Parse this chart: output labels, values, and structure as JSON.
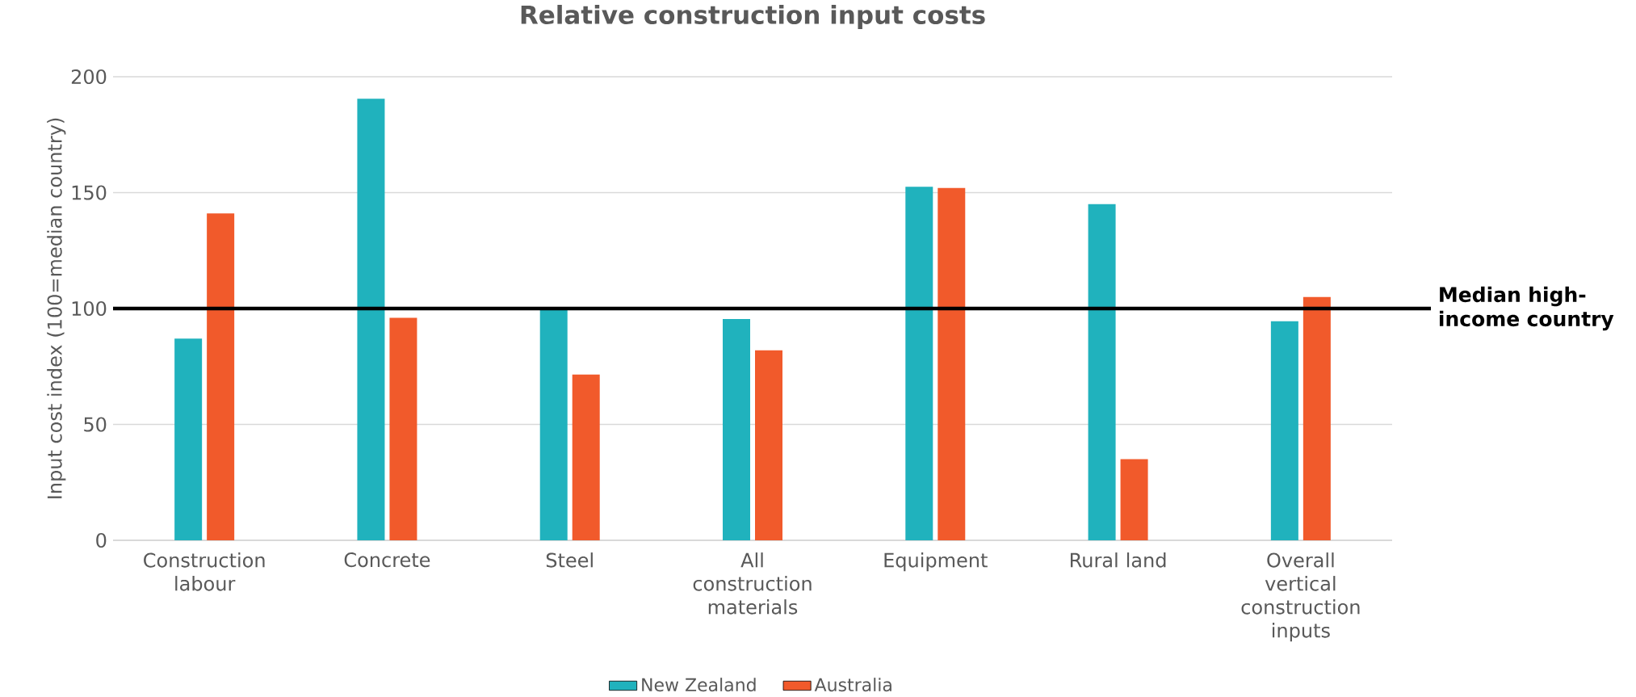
{
  "chart_data": {
    "type": "bar",
    "title": "Relative construction input costs",
    "ylabel": "Input cost index (100=median country)",
    "categories": [
      "Construction labour",
      "Concrete",
      "Steel",
      "All construction materials",
      "Equipment",
      "Rural land",
      "Overall vertical construction inputs"
    ],
    "series": [
      {
        "name": "New Zealand",
        "color": "#20b2bd",
        "values": [
          87,
          190.5,
          100,
          95.5,
          152.5,
          145,
          94.5
        ]
      },
      {
        "name": "Australia",
        "color": "#f15a2b",
        "values": [
          141,
          96,
          71.5,
          82,
          152,
          35,
          105
        ]
      }
    ],
    "ylim": [
      0,
      200
    ],
    "yticks": [
      0,
      50,
      100,
      150,
      200
    ],
    "grid": "y",
    "legend": "bottom",
    "ref_lines": [
      {
        "axis": "y",
        "value": 100,
        "label": "Median high-income country",
        "color": "#000000"
      }
    ]
  }
}
